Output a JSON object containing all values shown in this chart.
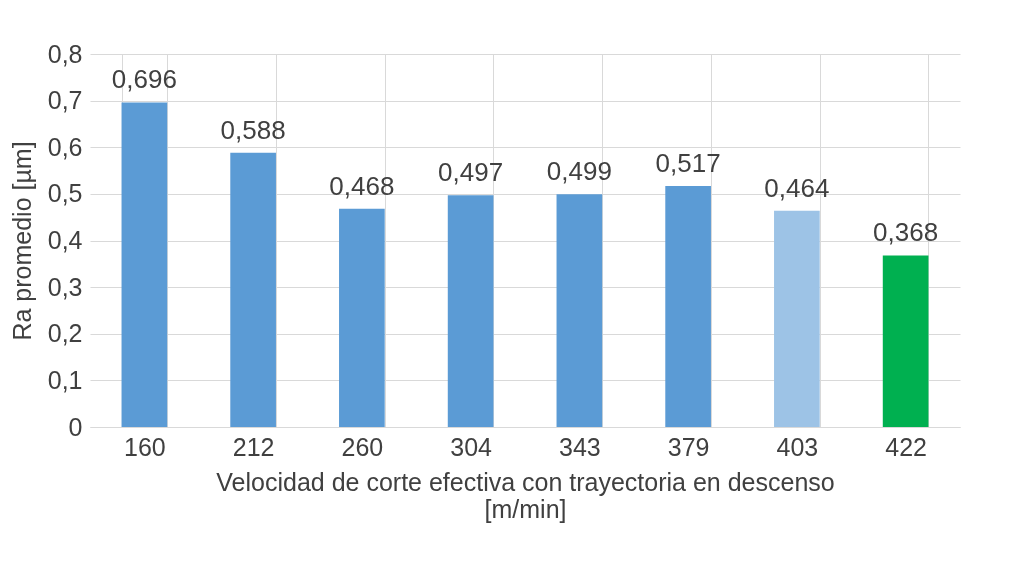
{
  "chart_data": {
    "type": "bar",
    "xlabel": "Velocidad de corte efectiva con trayectoria en descenso [m/min]",
    "ylabel": "Ra promedio [µm]",
    "categories": [
      "160",
      "212",
      "260",
      "304",
      "343",
      "379",
      "403",
      "422"
    ],
    "values": [
      0.696,
      0.588,
      0.468,
      0.497,
      0.499,
      0.517,
      0.464,
      0.368
    ],
    "colors": [
      "#5b9bd5",
      "#5b9bd5",
      "#5b9bd5",
      "#5b9bd5",
      "#5b9bd5",
      "#5b9bd5",
      "#9dc3e6",
      "#00b050"
    ],
    "value_labels": [
      "0,696",
      "0,588",
      "0,468",
      "0,497",
      "0,499",
      "0,517",
      "0,464",
      "0,368"
    ],
    "ylim": [
      0,
      0.8
    ],
    "yticks": [
      {
        "value": 0,
        "label": "0"
      },
      {
        "value": 0.1,
        "label": "0,1"
      },
      {
        "value": 0.2,
        "label": "0,2"
      },
      {
        "value": 0.3,
        "label": "0,3"
      },
      {
        "value": 0.4,
        "label": "0,4"
      },
      {
        "value": 0.5,
        "label": "0,5"
      },
      {
        "value": 0.6,
        "label": "0,6"
      },
      {
        "value": 0.7,
        "label": "0,7"
      },
      {
        "value": 0.8,
        "label": "0,8"
      }
    ],
    "grid": true
  }
}
